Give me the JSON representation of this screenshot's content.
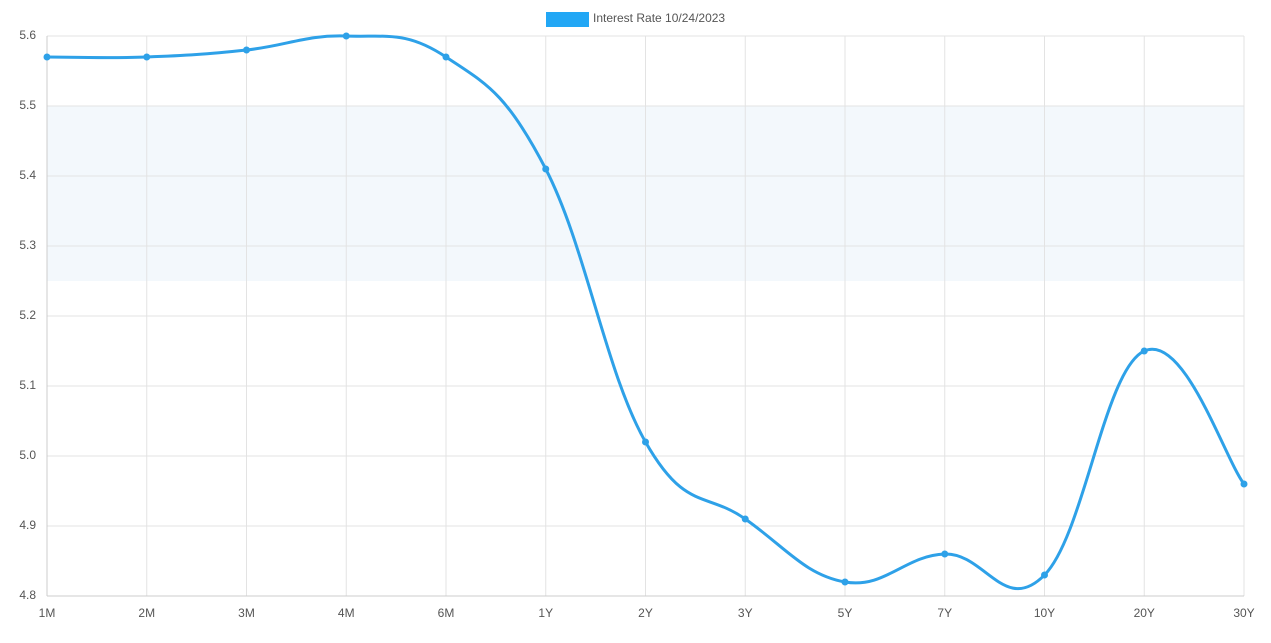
{
  "chart_data": {
    "type": "line",
    "categories": [
      "1M",
      "2M",
      "3M",
      "4M",
      "6M",
      "1Y",
      "2Y",
      "3Y",
      "5Y",
      "7Y",
      "10Y",
      "20Y",
      "30Y"
    ],
    "series": [
      {
        "name": "Interest Rate 10/24/2023",
        "color": "#2ea1e8",
        "values": [
          5.57,
          5.57,
          5.58,
          5.6,
          5.57,
          5.41,
          5.02,
          4.91,
          4.82,
          4.86,
          4.83,
          5.15,
          4.96
        ]
      }
    ],
    "ylim": [
      4.8,
      5.6
    ],
    "yticks": [
      4.8,
      4.9,
      {
        "value": 5,
        "label": "5.0"
      },
      5.1,
      5.2,
      5.3,
      5.4,
      5.5,
      5.6
    ],
    "band": [
      5.25,
      5.5
    ],
    "band_color": "#f3f8fc",
    "legend_color": "#22a7f5",
    "grid": true
  }
}
